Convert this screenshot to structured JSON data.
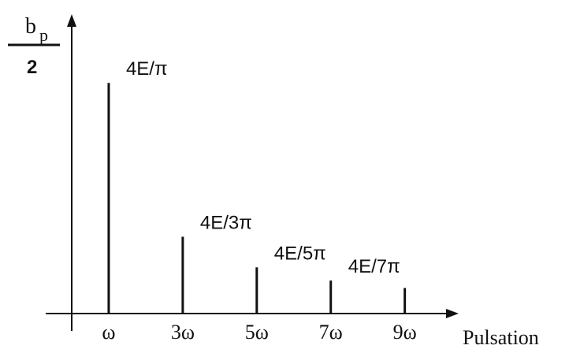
{
  "chart_data": {
    "type": "bar",
    "ylabel": {
      "numerator_base": "b",
      "numerator_sub": "p",
      "denominator": "2"
    },
    "xlabel": "Pulsation",
    "categories": [
      "ω",
      "3ω",
      "5ω",
      "7ω",
      "9ω"
    ],
    "x": [
      1,
      3,
      5,
      7,
      9
    ],
    "values": [
      1.273,
      0.424,
      0.255,
      0.182,
      0.141
    ],
    "data_labels": [
      "4E/π",
      "4E/3π",
      "4E/5π",
      "4E/7π",
      ""
    ],
    "units": "E",
    "xlim": [
      0,
      10.2
    ],
    "ylim": [
      0,
      1.6
    ],
    "grid": false,
    "legend": "none"
  }
}
